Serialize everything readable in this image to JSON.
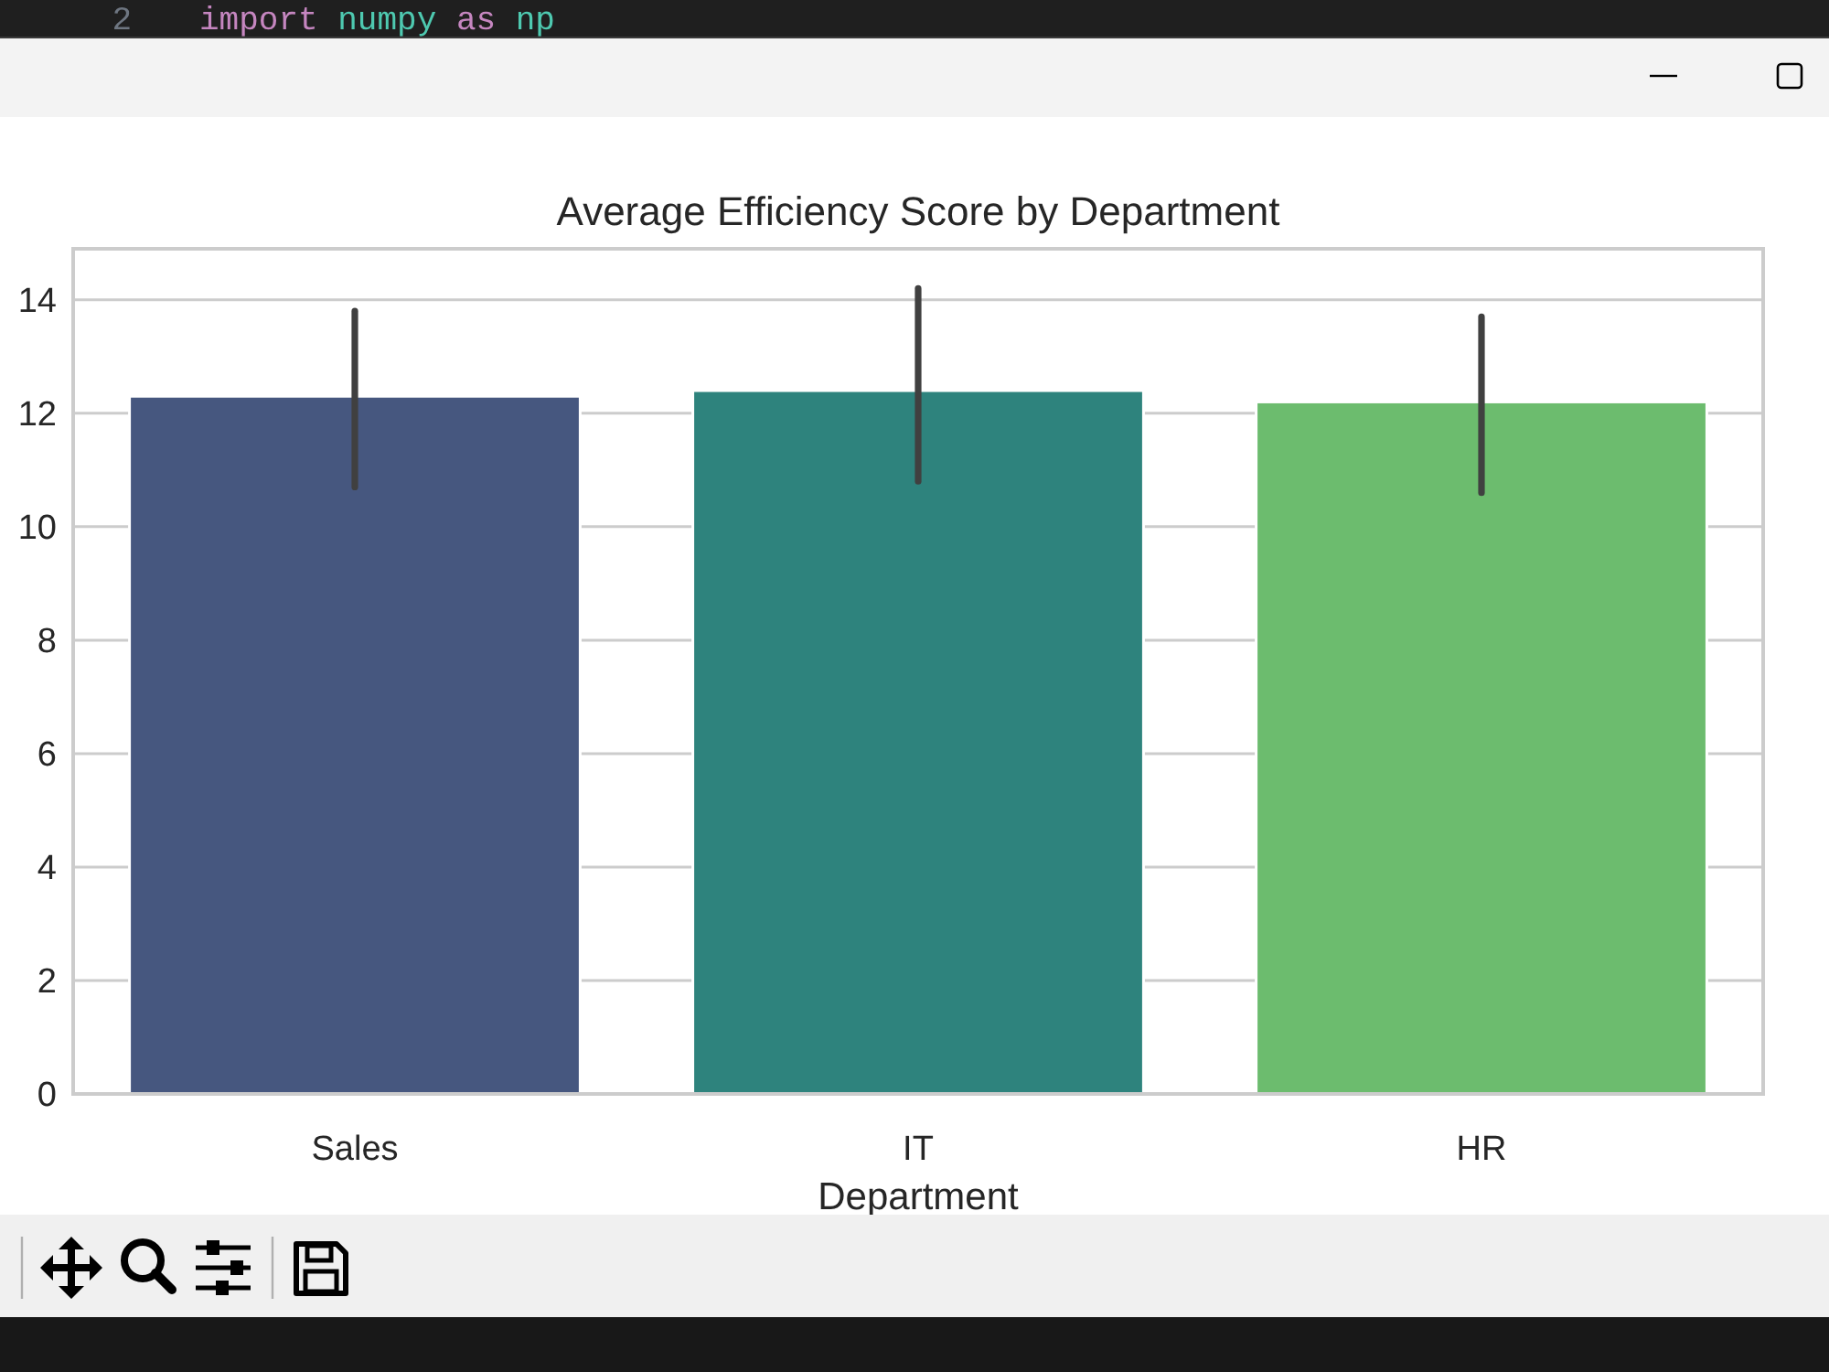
{
  "chart_data": {
    "type": "bar",
    "title": "Average Efficiency Score by Department",
    "xlabel": "Department",
    "categories": [
      "Sales",
      "IT",
      "HR"
    ],
    "values": [
      12.3,
      12.4,
      12.2
    ],
    "colors": [
      "#46577f",
      "#2e837d",
      "#6cbc6e"
    ],
    "errors": [
      [
        10.7,
        13.8
      ],
      [
        10.8,
        14.2
      ],
      [
        10.6,
        13.7
      ]
    ],
    "ylim": [
      0,
      14.9
    ],
    "yticks": [
      0,
      2,
      4,
      6,
      8,
      10,
      12,
      14
    ],
    "grid": "y",
    "annotations": [
      "2",
      "import numpy as np"
    ]
  }
}
